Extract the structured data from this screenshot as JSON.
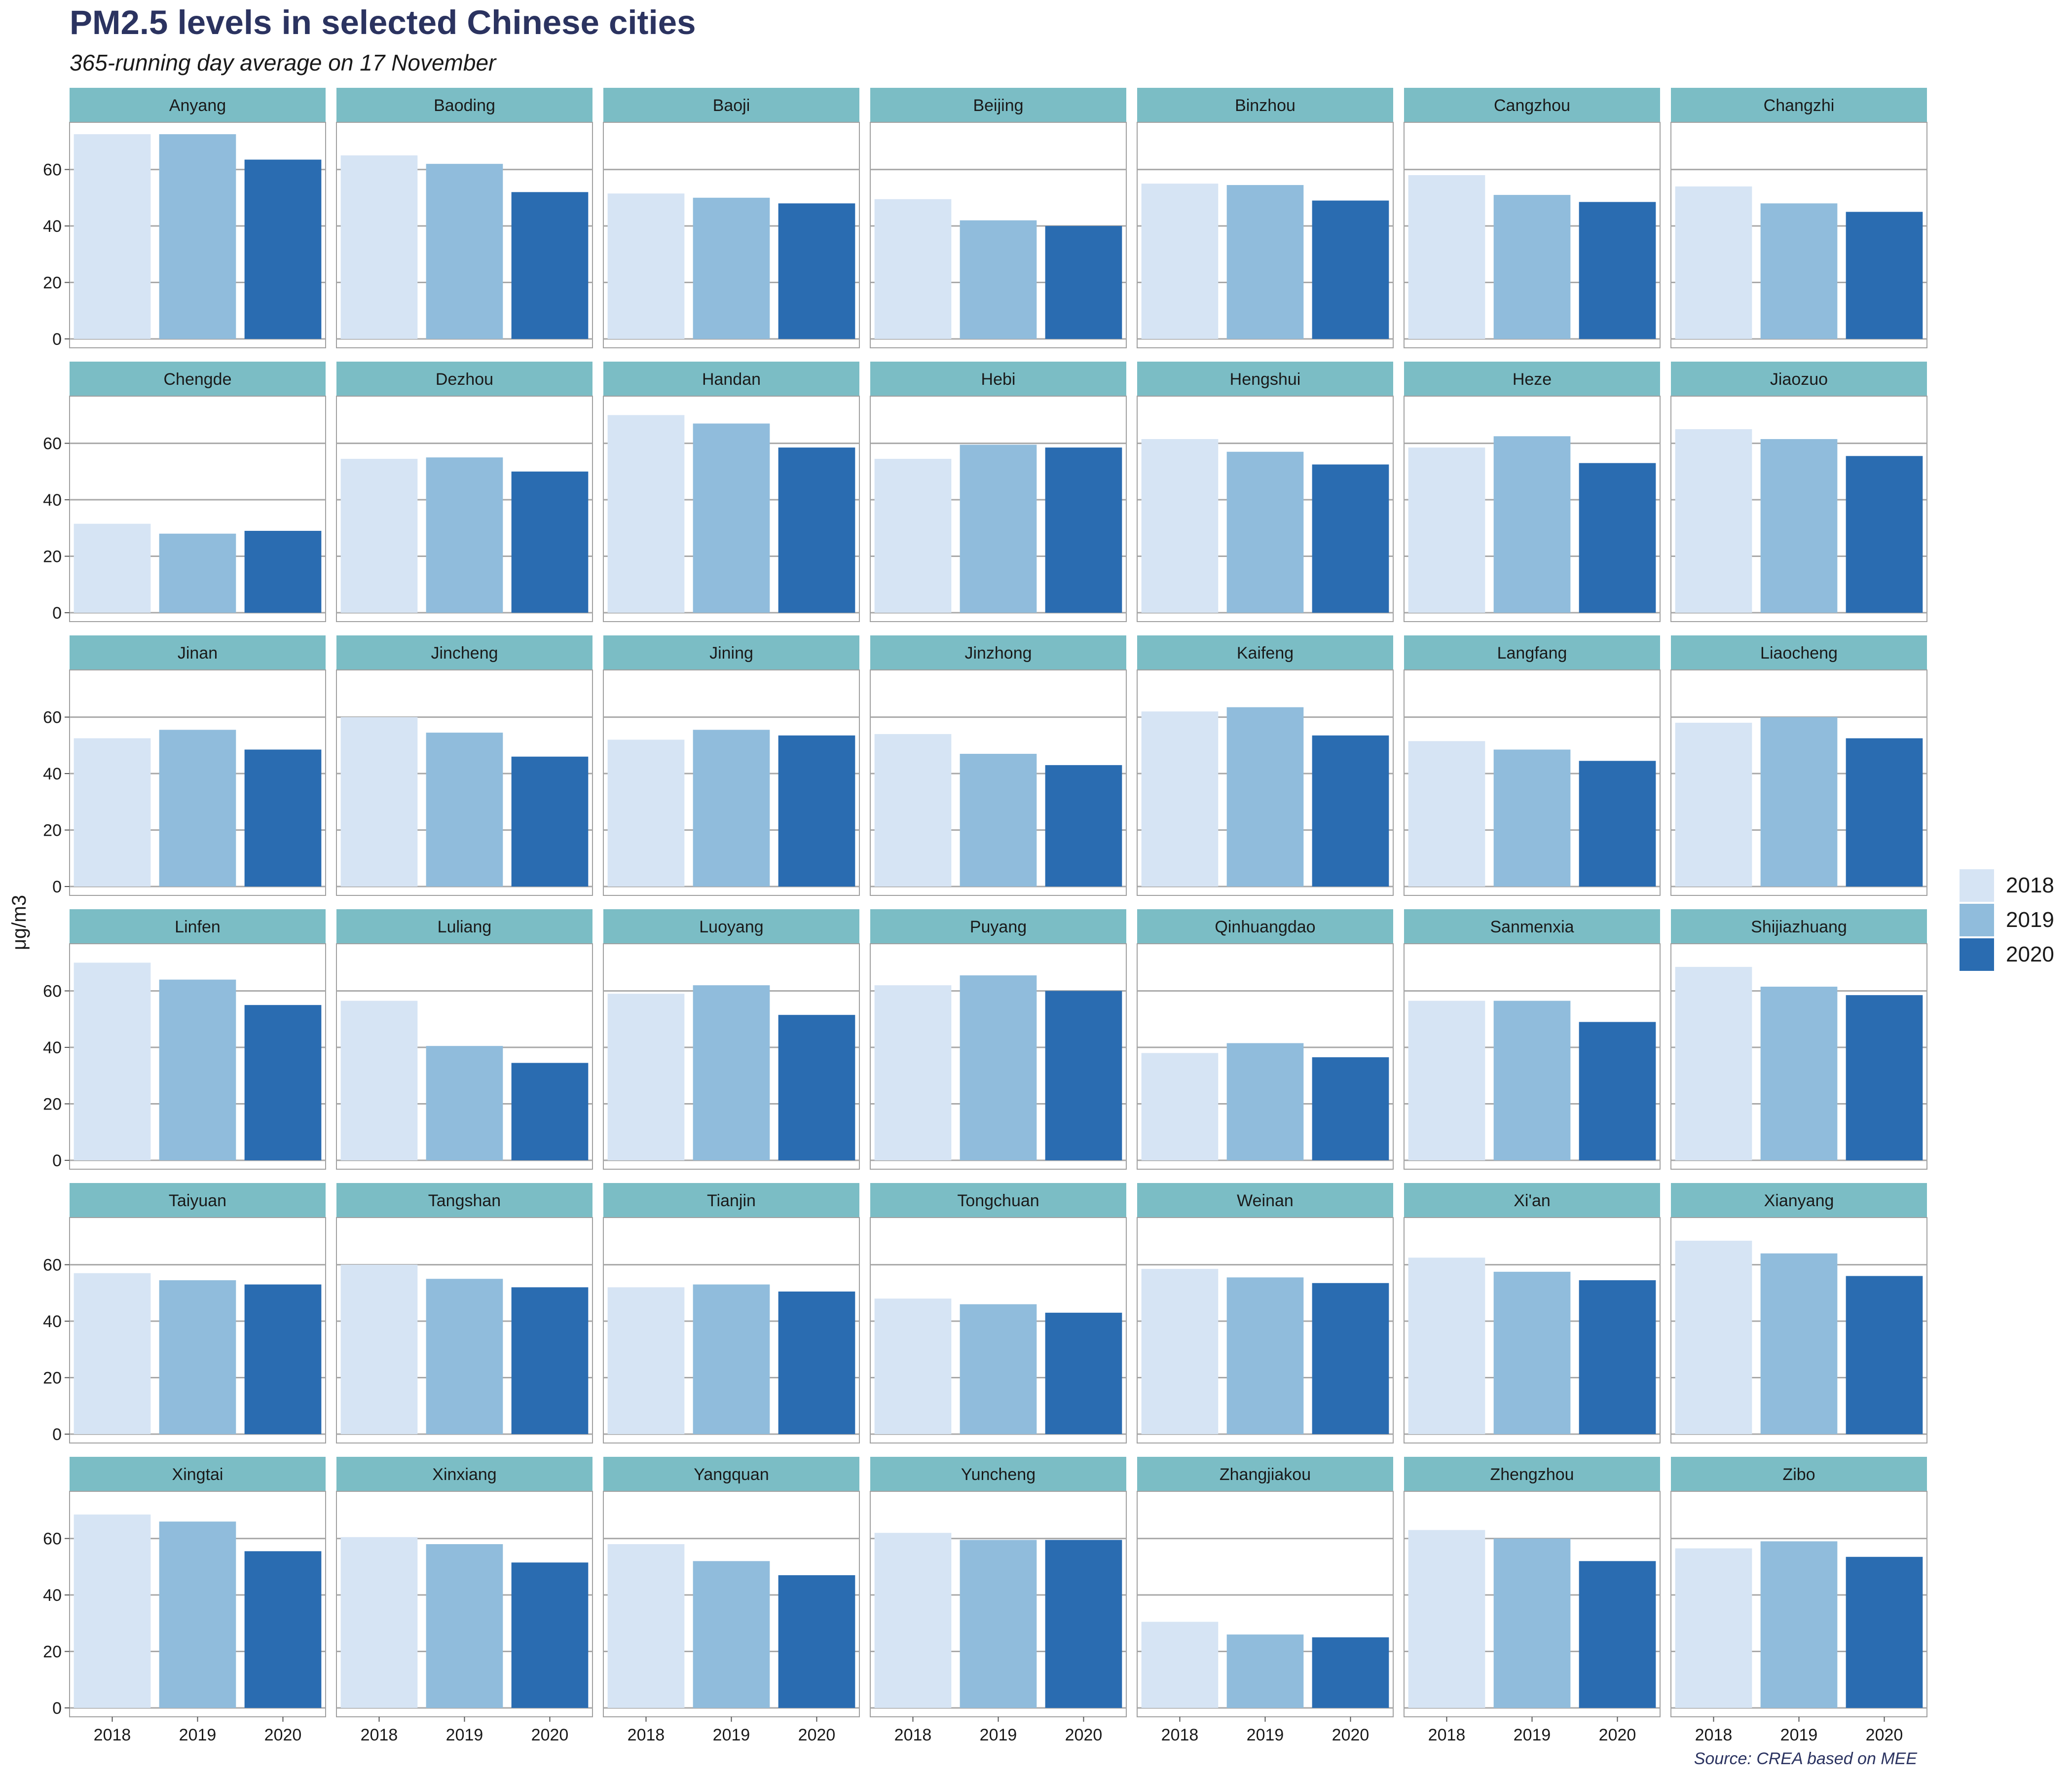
{
  "title": "PM2.5 levels in selected Chinese cities",
  "subtitle": "365-running day average on 17 November",
  "source": "Source: CREA based on MEE",
  "colors": {
    "2018": "#d6e4f4",
    "2019": "#90bcdc",
    "2020": "#2a6cb1",
    "strip": "#7bbdc5",
    "title": "#2b3360"
  },
  "legend": [
    {
      "label": "2018",
      "color": "#d6e4f4"
    },
    {
      "label": "2019",
      "color": "#90bcdc"
    },
    {
      "label": "2020",
      "color": "#2a6cb1"
    }
  ],
  "chart_data": {
    "type": "bar",
    "layout": "facet grid, 7 columns x 6 rows",
    "ylabel": "μg/m3",
    "xlabel": "",
    "ylim": [
      0,
      76
    ],
    "yticks": [
      0,
      20,
      40,
      60
    ],
    "grid": true,
    "legend_position": "right",
    "categories": [
      "2018",
      "2019",
      "2020"
    ],
    "panels": [
      {
        "city": "Anyang",
        "values": [
          72.5,
          72.5,
          63.5
        ]
      },
      {
        "city": "Baoding",
        "values": [
          65,
          62,
          52
        ]
      },
      {
        "city": "Baoji",
        "values": [
          51.5,
          50,
          48
        ]
      },
      {
        "city": "Beijing",
        "values": [
          49.5,
          42,
          40
        ]
      },
      {
        "city": "Binzhou",
        "values": [
          55,
          54.5,
          49
        ]
      },
      {
        "city": "Cangzhou",
        "values": [
          58,
          51,
          48.5
        ]
      },
      {
        "city": "Changzhi",
        "values": [
          54,
          48,
          45
        ]
      },
      {
        "city": "Chengde",
        "values": [
          31.5,
          28,
          29
        ]
      },
      {
        "city": "Dezhou",
        "values": [
          54.5,
          55,
          50
        ]
      },
      {
        "city": "Handan",
        "values": [
          70,
          67,
          58.5
        ]
      },
      {
        "city": "Hebi",
        "values": [
          54.5,
          59.5,
          58.5
        ]
      },
      {
        "city": "Hengshui",
        "values": [
          61.5,
          57,
          52.5
        ]
      },
      {
        "city": "Heze",
        "values": [
          58.5,
          62.5,
          53
        ]
      },
      {
        "city": "Jiaozuo",
        "values": [
          65,
          61.5,
          55.5
        ]
      },
      {
        "city": "Jinan",
        "values": [
          52.5,
          55.5,
          48.5
        ]
      },
      {
        "city": "Jincheng",
        "values": [
          60,
          54.5,
          46
        ]
      },
      {
        "city": "Jining",
        "values": [
          52,
          55.5,
          53.5
        ]
      },
      {
        "city": "Jinzhong",
        "values": [
          54,
          47,
          43
        ]
      },
      {
        "city": "Kaifeng",
        "values": [
          62,
          63.5,
          53.5
        ]
      },
      {
        "city": "Langfang",
        "values": [
          51.5,
          48.5,
          44.5
        ]
      },
      {
        "city": "Liaocheng",
        "values": [
          58,
          60,
          52.5
        ]
      },
      {
        "city": "Linfen",
        "values": [
          70,
          64,
          55
        ]
      },
      {
        "city": "Luliang",
        "values": [
          56.5,
          40.5,
          34.5
        ]
      },
      {
        "city": "Luoyang",
        "values": [
          59,
          62,
          51.5
        ]
      },
      {
        "city": "Puyang",
        "values": [
          62,
          65.5,
          60
        ]
      },
      {
        "city": "Qinhuangdao",
        "values": [
          38,
          41.5,
          36.5
        ]
      },
      {
        "city": "Sanmenxia",
        "values": [
          56.5,
          56.5,
          49
        ]
      },
      {
        "city": "Shijiazhuang",
        "values": [
          68.5,
          61.5,
          58.5
        ]
      },
      {
        "city": "Taiyuan",
        "values": [
          57,
          54.5,
          53
        ]
      },
      {
        "city": "Tangshan",
        "values": [
          60,
          55,
          52
        ]
      },
      {
        "city": "Tianjin",
        "values": [
          52,
          53,
          50.5
        ]
      },
      {
        "city": "Tongchuan",
        "values": [
          48,
          46,
          43
        ]
      },
      {
        "city": "Weinan",
        "values": [
          58.5,
          55.5,
          53.5
        ]
      },
      {
        "city": "Xi'an",
        "values": [
          62.5,
          57.5,
          54.5
        ]
      },
      {
        "city": "Xianyang",
        "values": [
          68.5,
          64,
          56
        ]
      },
      {
        "city": "Xingtai",
        "values": [
          68.5,
          66,
          55.5
        ]
      },
      {
        "city": "Xinxiang",
        "values": [
          60.5,
          58,
          51.5
        ]
      },
      {
        "city": "Yangquan",
        "values": [
          58,
          52,
          47
        ]
      },
      {
        "city": "Yuncheng",
        "values": [
          62,
          59.5,
          59.5
        ]
      },
      {
        "city": "Zhangjiakou",
        "values": [
          30.5,
          26,
          25
        ]
      },
      {
        "city": "Zhengzhou",
        "values": [
          63,
          60,
          52
        ]
      },
      {
        "city": "Zibo",
        "values": [
          56.5,
          59,
          53.5
        ]
      }
    ]
  }
}
